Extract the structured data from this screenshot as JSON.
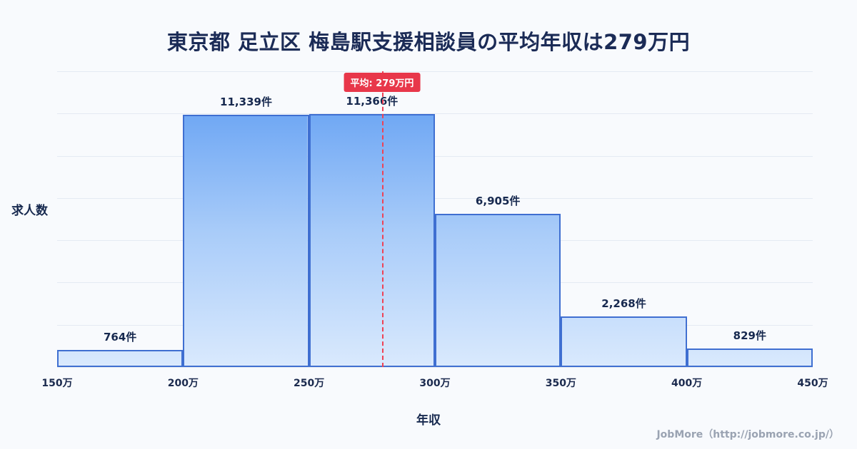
{
  "title": "東京都 足立区 梅島駅支援相談員の平均年収は279万円",
  "footer": "JobMore（http://jobmore.co.jp/）",
  "colors": {
    "background": "#f8fafd",
    "title_text": "#1b2b56",
    "bar_border": "#3f6fd1",
    "bar_gradient_top": "#5a9af2",
    "bar_gradient_bottom": "#d9e9fd",
    "average_line": "#ef4255",
    "average_badge_bg": "#e8374a",
    "gridline": "#e4eaf3",
    "footer_text": "#9aa3b2"
  },
  "chart_data": {
    "type": "bar",
    "subtype": "histogram",
    "title": "東京都 足立区 梅島駅支援相談員の平均年収は279万円",
    "xlabel": "年収",
    "ylabel": "求人数",
    "bin_edge_labels": [
      "150万",
      "200万",
      "250万",
      "300万",
      "350万",
      "400万",
      "450万"
    ],
    "bin_edges_value": [
      150,
      200,
      250,
      300,
      350,
      400,
      450
    ],
    "values": [
      764,
      11339,
      11366,
      6905,
      2268,
      829
    ],
    "value_labels": [
      "764件",
      "11,339件",
      "11,366件",
      "6,905件",
      "2,268件",
      "829件"
    ],
    "ylim": [
      0,
      13300
    ],
    "grid": true,
    "gridline_count": 8,
    "average_line": {
      "label": "平均: 279万円",
      "value": 279,
      "x_min": 150,
      "x_max": 450
    }
  }
}
